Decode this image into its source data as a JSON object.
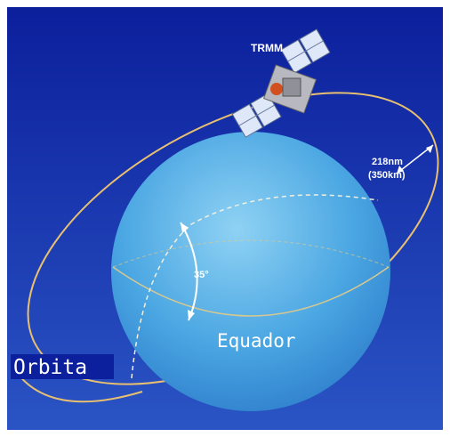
{
  "satellite": {
    "label": "TRMM"
  },
  "altitude": {
    "label": "218nm",
    "sublabel": "(350km)"
  },
  "inclination": {
    "label": "35°"
  },
  "equator": {
    "label": "Equador"
  },
  "orbit": {
    "label": "Orbita"
  }
}
